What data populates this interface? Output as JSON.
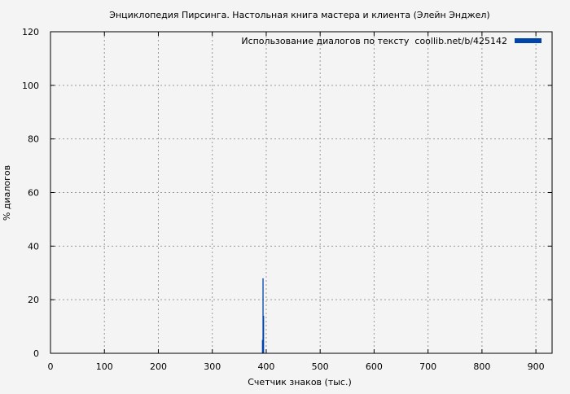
{
  "chart_data": {
    "type": "bar",
    "title": "Энциклопедия Пирсинга. Настольная книга мастера и клиента (Элейн Энджел)",
    "xlabel": "Счетчик знаков (тыс.)",
    "ylabel": "% диалогов",
    "xlim": [
      0,
      930
    ],
    "ylim": [
      0,
      120
    ],
    "xticks": [
      0,
      100,
      200,
      300,
      400,
      500,
      600,
      700,
      800,
      900
    ],
    "yticks": [
      0,
      20,
      40,
      60,
      80,
      100,
      120
    ],
    "grid": true,
    "legend_position": "top-right",
    "series": [
      {
        "name": "Использование диалогов по тексту  coollib.net/b/425142",
        "color": "#0044aa",
        "x": [
          393,
          394,
          395
        ],
        "values": [
          5,
          28,
          14
        ]
      }
    ]
  }
}
